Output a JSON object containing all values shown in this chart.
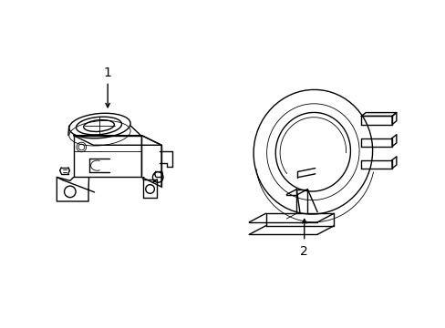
{
  "bg_color": "#ffffff",
  "line_color": "#000000",
  "lw": 1.0,
  "tlw": 0.6,
  "label1": "1",
  "label2": "2",
  "fig_width": 4.89,
  "fig_height": 3.6,
  "dpi": 100
}
